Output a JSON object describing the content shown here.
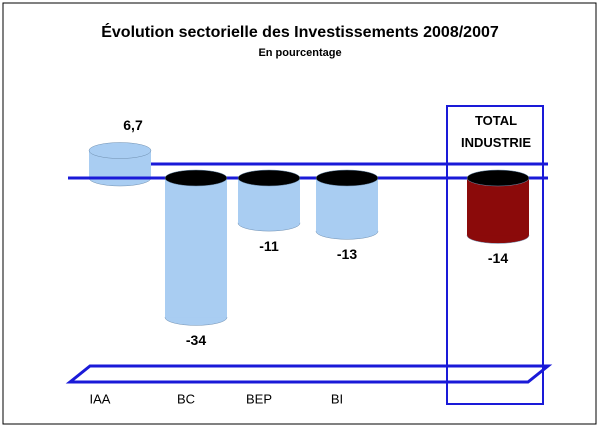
{
  "chart_data": {
    "type": "bar",
    "title": "Évolution sectorielle des Investissements 2008/2007",
    "subtitle": "En pourcentage",
    "categories": [
      "IAA",
      "BC",
      "BEP",
      "BI",
      "TOTAL INDUSTRIE"
    ],
    "values": [
      6.7,
      -34,
      -11,
      -13,
      -14
    ],
    "value_labels": [
      "6,7",
      "-34",
      "-11",
      "-13",
      "-14"
    ],
    "colors": [
      "#a9cdf2",
      "#a9cdf2",
      "#a9cdf2",
      "#a9cdf2",
      "#8b0a0a"
    ]
  }
}
